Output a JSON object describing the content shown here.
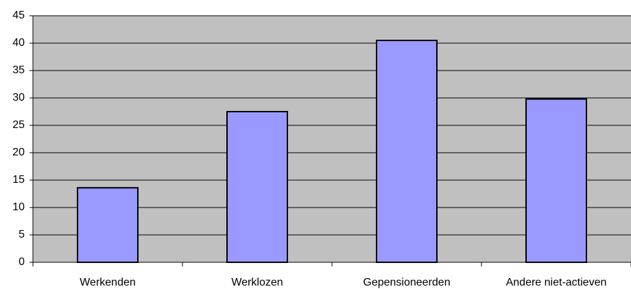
{
  "chart_data": {
    "type": "bar",
    "categories": [
      "Werkenden",
      "Werklozen",
      "Gepensioneerden",
      "Andere niet-actieven"
    ],
    "values": [
      13.6,
      27.5,
      40.5,
      29.8
    ],
    "color": "#9999ff",
    "plot_background": "#c0c0c0",
    "ylim": [
      0,
      45
    ],
    "yticks": [
      0,
      5,
      10,
      15,
      20,
      25,
      30,
      35,
      40,
      45
    ],
    "grid": true
  }
}
